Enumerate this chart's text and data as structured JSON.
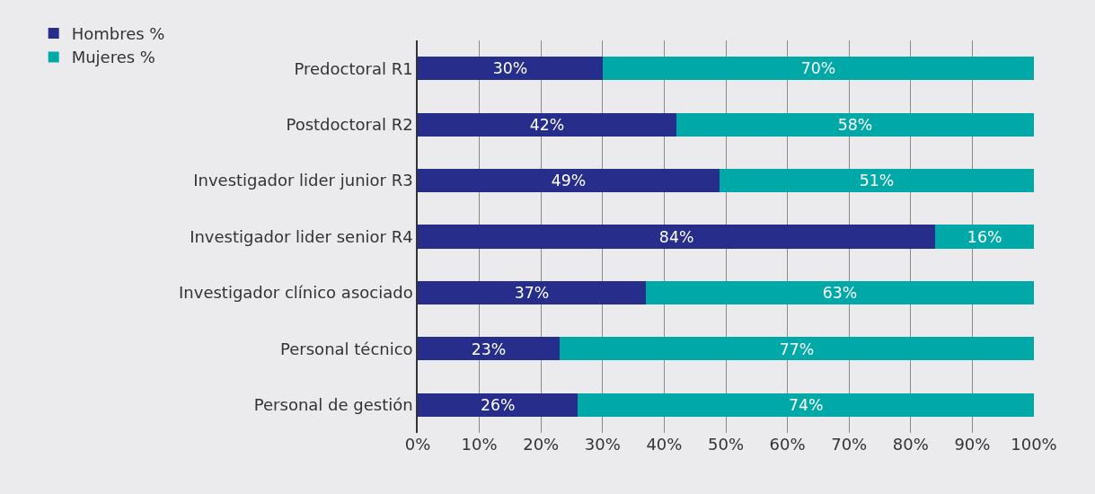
{
  "chart_data": {
    "type": "bar",
    "orientation": "horizontal",
    "stacked": true,
    "categories": [
      "Predoctoral R1",
      "Postdoctoral R2",
      "Investigador lider junior R3",
      "Investigador lider senior R4",
      "Investigador clínico asociado",
      "Personal técnico",
      "Personal de gestión"
    ],
    "series": [
      {
        "name": "Hombres %",
        "color": "#262d8a",
        "values": [
          30,
          42,
          49,
          84,
          37,
          23,
          26
        ],
        "value_labels": [
          "30%",
          "42%",
          "49%",
          "84%",
          "37%",
          "23%",
          "26%"
        ]
      },
      {
        "name": "Mujeres %",
        "color": "#00a9a8",
        "values": [
          70,
          58,
          51,
          16,
          63,
          77,
          74
        ],
        "value_labels": [
          "70%",
          "58%",
          "51%",
          "16%",
          "63%",
          "77%",
          "74%"
        ]
      }
    ],
    "xlim": [
      0,
      100
    ],
    "xticks": [
      {
        "value": 0,
        "label": "0%"
      },
      {
        "value": 10,
        "label": "10%"
      },
      {
        "value": 20,
        "label": "20%"
      },
      {
        "value": 30,
        "label": "30%"
      },
      {
        "value": 40,
        "label": "40%"
      },
      {
        "value": 50,
        "label": "50%"
      },
      {
        "value": 60,
        "label": "60%"
      },
      {
        "value": 70,
        "label": "70%"
      },
      {
        "value": 80,
        "label": "80%"
      },
      {
        "value": 90,
        "label": "90%"
      },
      {
        "value": 100,
        "label": "100%"
      }
    ],
    "grid": "x",
    "legend": "top left"
  }
}
